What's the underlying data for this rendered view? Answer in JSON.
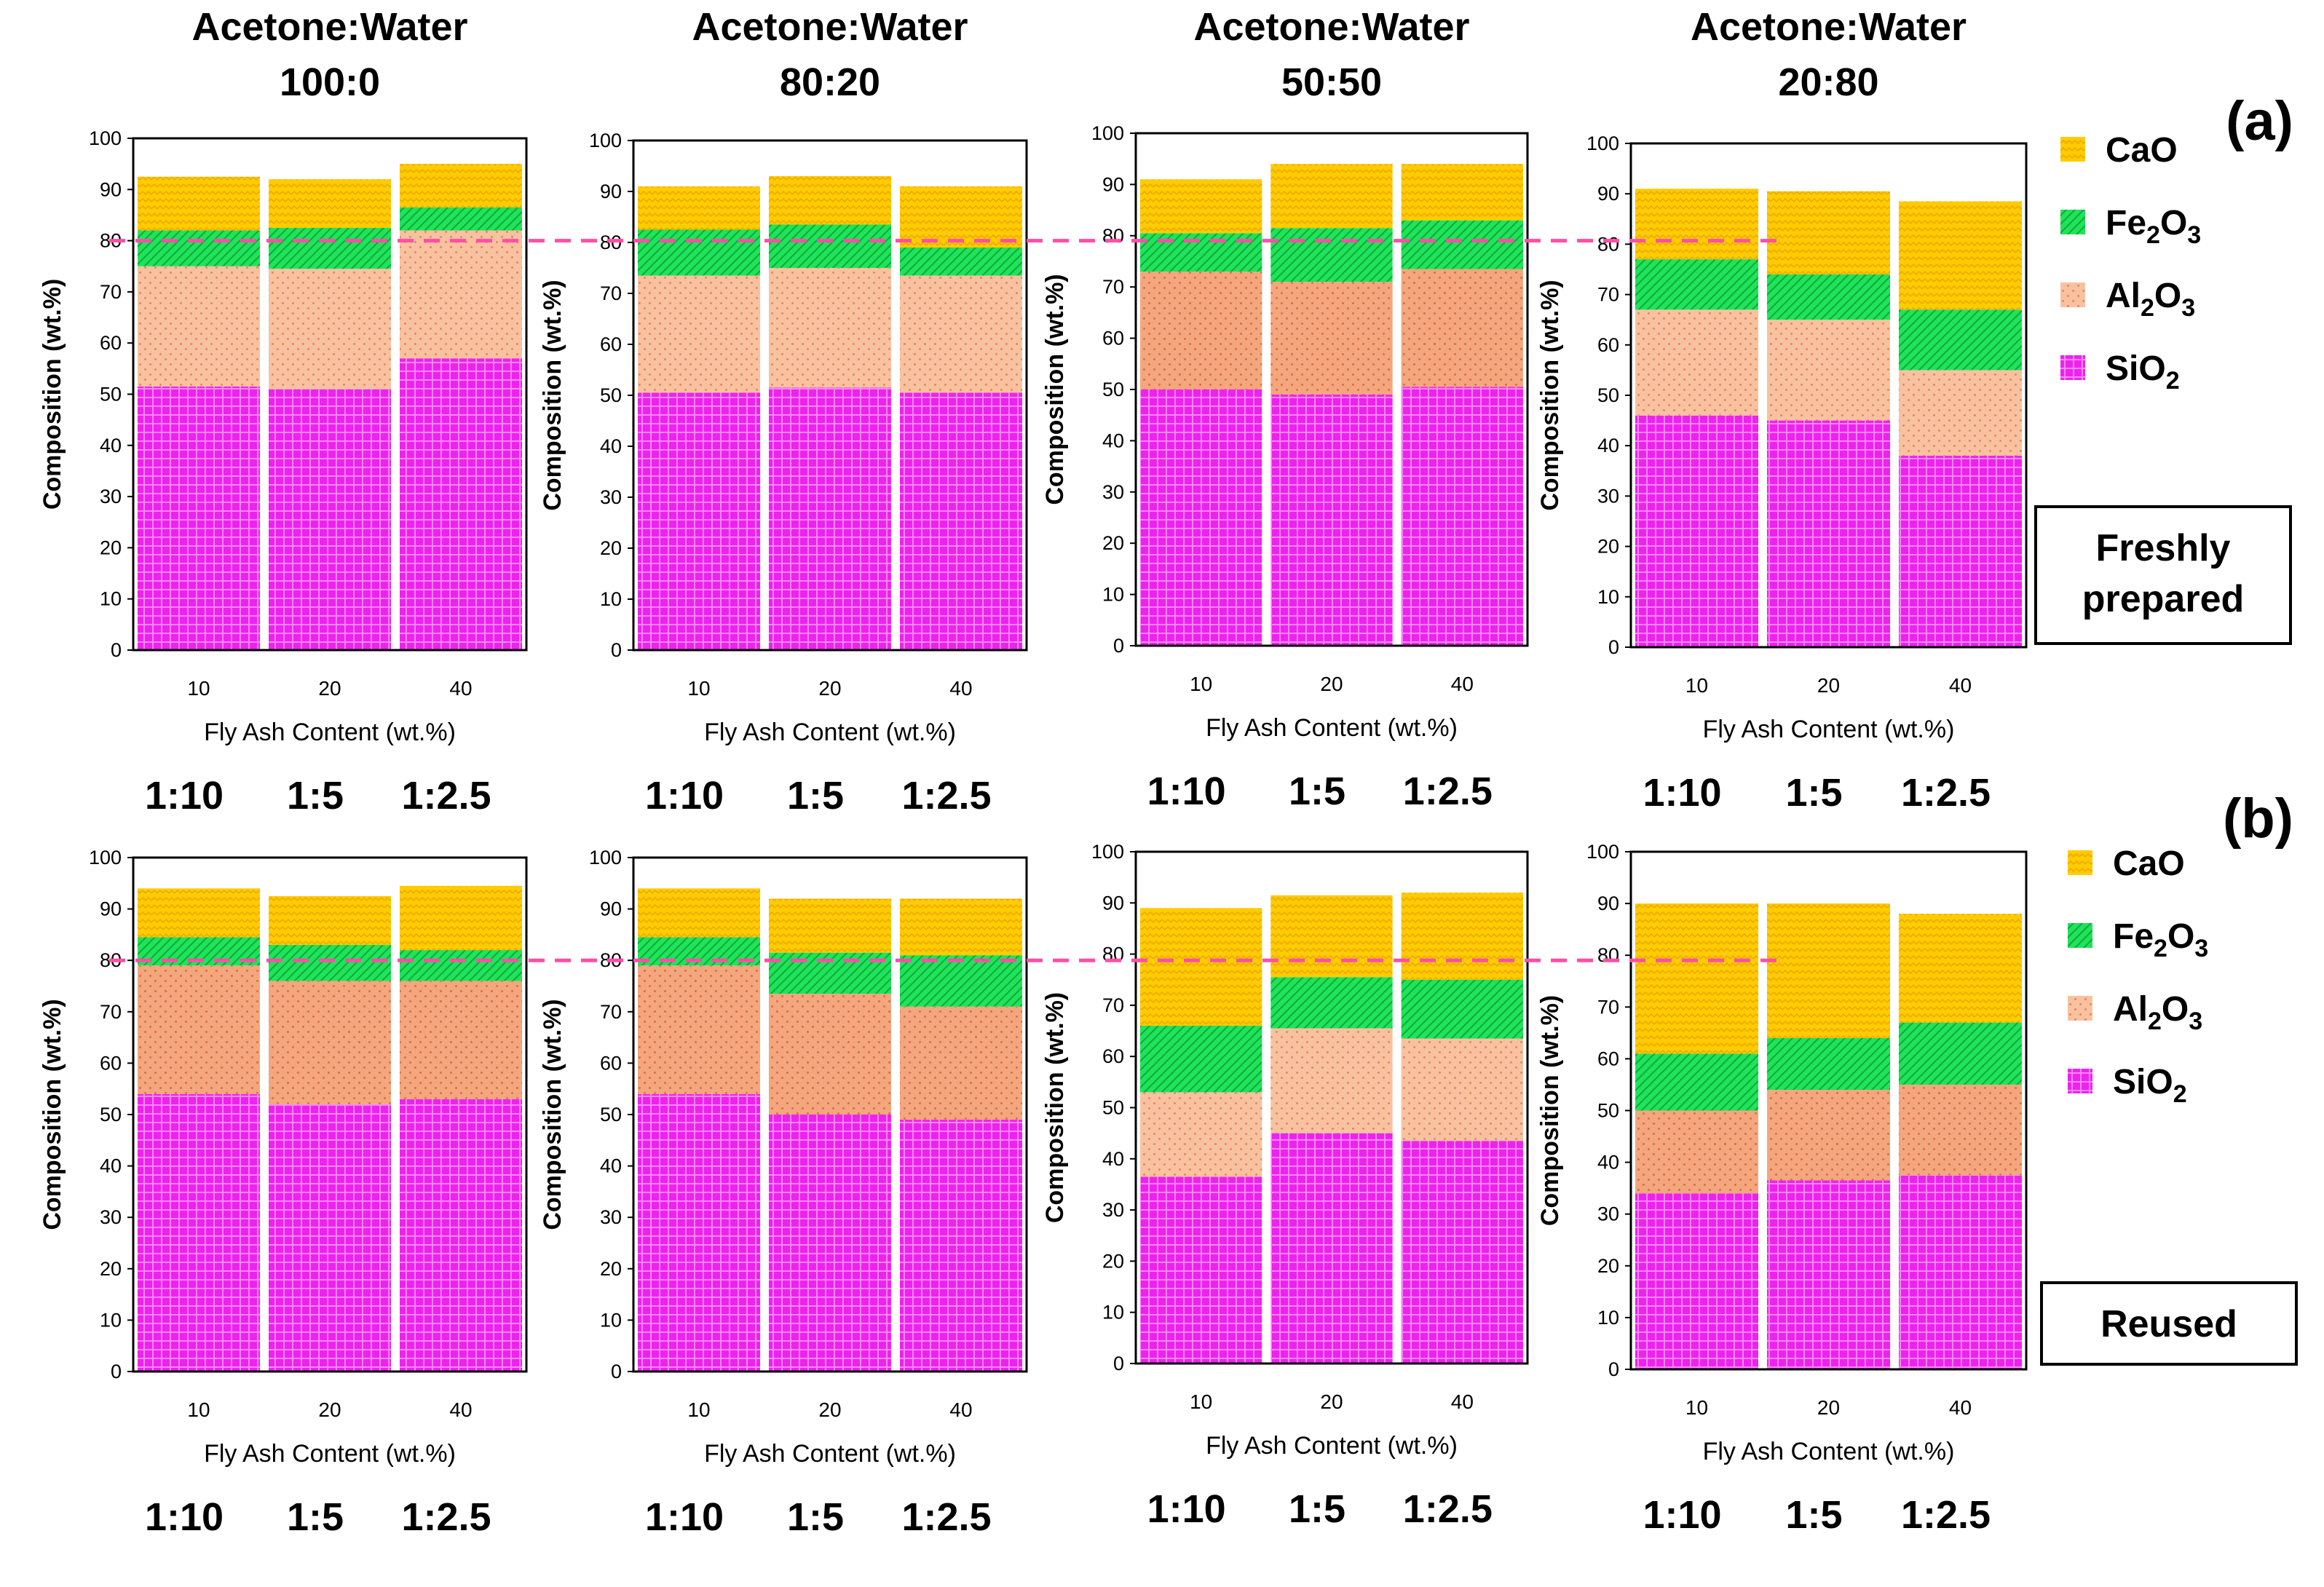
{
  "figure": {
    "panel_labels": [
      "(a)",
      "(b)"
    ],
    "state_labels": [
      "Freshly\nprepared",
      "Reused"
    ],
    "threshold": 80,
    "colors": {
      "SiO2": "#ee22ee",
      "Al2O3": "#f8c2a0",
      "Al2O3_dark": "#f4a67e",
      "Fe2O3": "#1fe45a",
      "CaO": "#ffcc00",
      "threshold": "#ff4fa8"
    }
  },
  "legend": [
    {
      "key": "CaO",
      "base": "CaO",
      "sub": ""
    },
    {
      "key": "Fe2O3",
      "base": "Fe",
      "sub": "2",
      "tail": "O",
      "sub2": "3"
    },
    {
      "key": "Al2O3",
      "base": "Al",
      "sub": "2",
      "tail": "O",
      "sub2": "3"
    },
    {
      "key": "SiO2",
      "base": "SiO",
      "sub": "2"
    }
  ],
  "chart_data": [
    {
      "row": "a",
      "type": "bar",
      "stacked": true,
      "title": "Acetone:Water\n100:0",
      "ylabel": "Composition (wt.%)",
      "xlabel": "Fly Ash Content (wt.%)",
      "ylim": [
        0,
        100
      ],
      "yticks": [
        0,
        10,
        20,
        30,
        40,
        50,
        60,
        70,
        80,
        90,
        100
      ],
      "categories": [
        "10",
        "20",
        "40"
      ],
      "ratios": [
        "1:10",
        "1:5",
        "1:2.5"
      ],
      "al_dark": false,
      "series": [
        {
          "name": "SiO2",
          "values": [
            51.5,
            51,
            57
          ]
        },
        {
          "name": "Al2O3",
          "values": [
            23.5,
            23.5,
            25
          ]
        },
        {
          "name": "Fe2O3",
          "values": [
            7,
            8,
            4.5
          ]
        },
        {
          "name": "CaO",
          "values": [
            10.5,
            9.5,
            8.5
          ]
        }
      ]
    },
    {
      "row": "a",
      "type": "bar",
      "stacked": true,
      "title": "Acetone:Water\n80:20",
      "ylabel": "Composition (wt.%)",
      "xlabel": "Fly Ash Content (wt.%)",
      "ylim": [
        0,
        100
      ],
      "yticks": [
        0,
        10,
        20,
        30,
        40,
        50,
        60,
        70,
        80,
        90,
        100
      ],
      "categories": [
        "10",
        "20",
        "40"
      ],
      "ratios": [
        "1:10",
        "1:5",
        "1:2.5"
      ],
      "al_dark": false,
      "series": [
        {
          "name": "SiO2",
          "values": [
            50.5,
            51.5,
            50.5
          ]
        },
        {
          "name": "Al2O3",
          "values": [
            23,
            23.5,
            23
          ]
        },
        {
          "name": "Fe2O3",
          "values": [
            9,
            8.5,
            5.5
          ]
        },
        {
          "name": "CaO",
          "values": [
            8.5,
            9.5,
            12
          ]
        }
      ]
    },
    {
      "row": "a",
      "type": "bar",
      "stacked": true,
      "title": "Acetone:Water\n50:50",
      "ylabel": "Composition (wt.%)",
      "xlabel": "Fly Ash Content (wt.%)",
      "ylim": [
        0,
        100
      ],
      "yticks": [
        0,
        10,
        20,
        30,
        40,
        50,
        60,
        70,
        80,
        90,
        100
      ],
      "categories": [
        "10",
        "20",
        "40"
      ],
      "ratios": [
        "1:10",
        "1:5",
        "1:2.5"
      ],
      "al_dark": true,
      "series": [
        {
          "name": "SiO2",
          "values": [
            50,
            49,
            50.5
          ]
        },
        {
          "name": "Al2O3",
          "values": [
            23,
            22,
            23
          ]
        },
        {
          "name": "Fe2O3",
          "values": [
            7.5,
            10.5,
            9.5
          ]
        },
        {
          "name": "CaO",
          "values": [
            10.5,
            12.5,
            11
          ]
        }
      ]
    },
    {
      "row": "a",
      "type": "bar",
      "stacked": true,
      "title": "Acetone:Water\n20:80",
      "ylabel": "Composition (wt.%)",
      "xlabel": "Fly Ash Content (wt.%)",
      "ylim": [
        0,
        100
      ],
      "yticks": [
        0,
        10,
        20,
        30,
        40,
        50,
        60,
        70,
        80,
        90,
        100
      ],
      "categories": [
        "10",
        "20",
        "40"
      ],
      "ratios": [
        "1:10",
        "1:5",
        "1:2.5"
      ],
      "al_dark": false,
      "series": [
        {
          "name": "SiO2",
          "values": [
            46,
            45,
            38
          ]
        },
        {
          "name": "Al2O3",
          "values": [
            21,
            20,
            17
          ]
        },
        {
          "name": "Fe2O3",
          "values": [
            10,
            9,
            12
          ]
        },
        {
          "name": "CaO",
          "values": [
            14,
            16.5,
            21.5
          ]
        }
      ]
    },
    {
      "row": "b",
      "type": "bar",
      "stacked": true,
      "title": "",
      "ylabel": "Composition (wt.%)",
      "xlabel": "Fly Ash Content (wt.%)",
      "ylim": [
        0,
        100
      ],
      "yticks": [
        0,
        10,
        20,
        30,
        40,
        50,
        60,
        70,
        80,
        90,
        100
      ],
      "categories": [
        "10",
        "20",
        "40"
      ],
      "ratios": [
        "1:10",
        "1:5",
        "1:2.5"
      ],
      "al_dark": true,
      "series": [
        {
          "name": "SiO2",
          "values": [
            54,
            52,
            53
          ]
        },
        {
          "name": "Al2O3",
          "values": [
            25,
            24,
            23
          ]
        },
        {
          "name": "Fe2O3",
          "values": [
            5.5,
            7,
            6
          ]
        },
        {
          "name": "CaO",
          "values": [
            9.5,
            9.5,
            12.5
          ]
        }
      ]
    },
    {
      "row": "b",
      "type": "bar",
      "stacked": true,
      "title": "",
      "ylabel": "Composition (wt.%)",
      "xlabel": "Fly Ash Content (wt.%)",
      "ylim": [
        0,
        100
      ],
      "yticks": [
        0,
        10,
        20,
        30,
        40,
        50,
        60,
        70,
        80,
        90,
        100
      ],
      "categories": [
        "10",
        "20",
        "40"
      ],
      "ratios": [
        "1:10",
        "1:5",
        "1:2.5"
      ],
      "al_dark": true,
      "series": [
        {
          "name": "SiO2",
          "values": [
            54,
            50,
            49
          ]
        },
        {
          "name": "Al2O3",
          "values": [
            25,
            23.5,
            22
          ]
        },
        {
          "name": "Fe2O3",
          "values": [
            5.5,
            8,
            10
          ]
        },
        {
          "name": "CaO",
          "values": [
            9.5,
            10.5,
            11
          ]
        }
      ]
    },
    {
      "row": "b",
      "type": "bar",
      "stacked": true,
      "title": "",
      "ylabel": "Composition (wt.%)",
      "xlabel": "Fly Ash Content (wt.%)",
      "ylim": [
        0,
        100
      ],
      "yticks": [
        0,
        10,
        20,
        30,
        40,
        50,
        60,
        70,
        80,
        90,
        100
      ],
      "categories": [
        "10",
        "20",
        "40"
      ],
      "ratios": [
        "1:10",
        "1:5",
        "1:2.5"
      ],
      "al_dark": false,
      "series": [
        {
          "name": "SiO2",
          "values": [
            36.5,
            45,
            43.5
          ]
        },
        {
          "name": "Al2O3",
          "values": [
            16.5,
            20.5,
            20
          ]
        },
        {
          "name": "Fe2O3",
          "values": [
            13,
            10,
            11.5
          ]
        },
        {
          "name": "CaO",
          "values": [
            23,
            16,
            17
          ]
        }
      ]
    },
    {
      "row": "b",
      "type": "bar",
      "stacked": true,
      "title": "",
      "ylabel": "Composition (wt.%)",
      "xlabel": "Fly Ash Content (wt.%)",
      "ylim": [
        0,
        100
      ],
      "yticks": [
        0,
        10,
        20,
        30,
        40,
        50,
        60,
        70,
        80,
        90,
        100
      ],
      "categories": [
        "10",
        "20",
        "40"
      ],
      "ratios": [
        "1:10",
        "1:5",
        "1:2.5"
      ],
      "al_dark": true,
      "series": [
        {
          "name": "SiO2",
          "values": [
            34,
            36.5,
            37.5
          ]
        },
        {
          "name": "Al2O3",
          "values": [
            16,
            17.5,
            17.5
          ]
        },
        {
          "name": "Fe2O3",
          "values": [
            11,
            10,
            12
          ]
        },
        {
          "name": "CaO",
          "values": [
            29,
            26,
            21
          ]
        }
      ]
    }
  ]
}
